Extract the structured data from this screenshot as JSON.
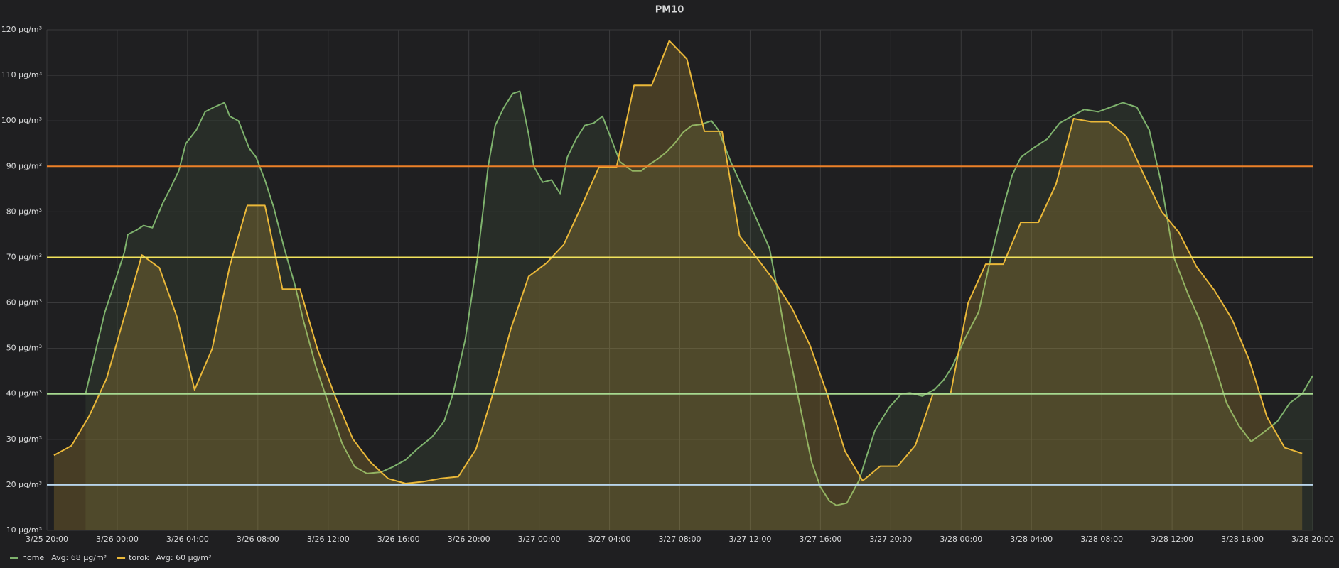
{
  "chart_data": {
    "type": "line",
    "title": "PM10",
    "grid": true,
    "background": "#1f1f21",
    "xlim": [
      0,
      72
    ],
    "ylim": [
      10,
      120
    ],
    "xticks": [
      {
        "value": 0,
        "label": "3/25 20:00"
      },
      {
        "value": 4,
        "label": "3/26 00:00"
      },
      {
        "value": 8,
        "label": "3/26 04:00"
      },
      {
        "value": 12,
        "label": "3/26 08:00"
      },
      {
        "value": 16,
        "label": "3/26 12:00"
      },
      {
        "value": 20,
        "label": "3/26 16:00"
      },
      {
        "value": 24,
        "label": "3/26 20:00"
      },
      {
        "value": 28,
        "label": "3/27 00:00"
      },
      {
        "value": 32,
        "label": "3/27 04:00"
      },
      {
        "value": 36,
        "label": "3/27 08:00"
      },
      {
        "value": 40,
        "label": "3/27 12:00"
      },
      {
        "value": 44,
        "label": "3/27 16:00"
      },
      {
        "value": 48,
        "label": "3/27 20:00"
      },
      {
        "value": 52,
        "label": "3/28 00:00"
      },
      {
        "value": 56,
        "label": "3/28 04:00"
      },
      {
        "value": 60,
        "label": "3/28 08:00"
      },
      {
        "value": 64,
        "label": "3/28 12:00"
      },
      {
        "value": 68,
        "label": "3/28 16:00"
      },
      {
        "value": 72,
        "label": "3/28 20:00"
      }
    ],
    "yticks": [
      {
        "value": 10,
        "label": "10 µg/m³"
      },
      {
        "value": 20,
        "label": "20 µg/m³"
      },
      {
        "value": 30,
        "label": "30 µg/m³"
      },
      {
        "value": 40,
        "label": "40 µg/m³"
      },
      {
        "value": 50,
        "label": "50 µg/m³"
      },
      {
        "value": 60,
        "label": "60 µg/m³"
      },
      {
        "value": 70,
        "label": "70 µg/m³"
      },
      {
        "value": 80,
        "label": "80 µg/m³"
      },
      {
        "value": 90,
        "label": "90 µg/m³"
      },
      {
        "value": 100,
        "label": "100 µg/m³"
      },
      {
        "value": 110,
        "label": "110 µg/m³"
      },
      {
        "value": 120,
        "label": "120 µg/m³"
      }
    ],
    "thresholds": [
      {
        "value": 90,
        "color": "#ed8128"
      },
      {
        "value": 70,
        "color": "#f2e35c"
      },
      {
        "value": 40,
        "color": "#a6d88f"
      },
      {
        "value": 20,
        "color": "#b8d4ea"
      }
    ],
    "series": [
      {
        "name": "home",
        "legend_text": "Avg: 68 µg/m³",
        "color": "#7eb26d",
        "fill_opacity": 0.1,
        "x": [
          2.2,
          2.8,
          3.3,
          3.9,
          4.4,
          4.6,
          5.1,
          5.5,
          6.0,
          6.6,
          7.0,
          7.5,
          7.9,
          8.5,
          9.0,
          9.5,
          10.1,
          10.4,
          10.9,
          11.5,
          11.9,
          12.4,
          12.9,
          13.5,
          14.1,
          14.6,
          15.3,
          16.0,
          16.8,
          17.5,
          18.2,
          19.0,
          19.7,
          20.4,
          21.1,
          21.9,
          22.6,
          23.1,
          23.8,
          24.5,
          25.1,
          25.5,
          26.0,
          26.5,
          26.9,
          27.4,
          27.7,
          28.2,
          28.7,
          29.2,
          29.6,
          30.1,
          30.6,
          31.1,
          31.6,
          32.1,
          32.6,
          33.3,
          33.8,
          34.3,
          34.7,
          35.2,
          35.7,
          36.2,
          36.7,
          37.2,
          37.8,
          38.2,
          38.9,
          39.6,
          40.3,
          41.1,
          41.5,
          42.0,
          42.8,
          43.5,
          44.0,
          44.5,
          44.9,
          45.5,
          46.2,
          46.6,
          47.1,
          47.9,
          48.6,
          49.1,
          49.8,
          50.5,
          51.0,
          51.5,
          52.2,
          53.0,
          53.7,
          54.4,
          54.9,
          55.4,
          56.1,
          56.9,
          57.6,
          58.3,
          59.0,
          59.8,
          60.5,
          61.2,
          62.0,
          62.7,
          63.4,
          64.1,
          64.9,
          65.6,
          66.3,
          67.1,
          67.8,
          68.5,
          69.2,
          70.0,
          70.7,
          71.4,
          72.0
        ],
        "values": [
          40,
          50,
          58,
          65,
          71,
          75,
          76,
          77,
          76.5,
          82,
          85,
          89,
          95,
          98,
          102,
          103,
          104,
          101,
          100,
          94,
          92,
          87,
          81,
          72,
          64,
          56,
          46,
          38,
          29,
          24,
          22.5,
          22.8,
          24,
          25.5,
          28,
          30.5,
          34,
          40,
          52,
          70,
          90,
          99,
          103,
          106,
          106.5,
          97,
          90,
          86.5,
          87,
          84,
          92,
          96,
          99,
          99.5,
          101,
          96,
          91,
          89,
          89,
          90.5,
          91.5,
          93,
          95,
          97.5,
          99,
          99.2,
          100,
          98,
          91,
          85,
          79,
          72,
          64,
          53,
          38,
          25,
          19.5,
          16.5,
          15.5,
          16,
          21,
          26,
          32,
          37,
          40,
          40.2,
          39.5,
          41,
          43,
          46,
          52,
          58,
          70,
          81,
          88,
          92,
          94,
          96,
          99.5,
          101,
          102.5,
          102,
          103,
          104,
          103,
          98,
          86,
          70,
          62,
          56,
          48,
          38,
          33,
          29.5,
          31.5,
          34,
          38,
          40,
          44
        ]
      },
      {
        "name": "torok",
        "legend_text": "Avg: 60 µg/m³",
        "color": "#eab839",
        "fill_opacity": 0.2,
        "x": [
          0.4,
          1.4,
          2.4,
          3.4,
          4.4,
          5.4,
          6.4,
          7.4,
          8.4,
          9.4,
          10.4,
          11.4,
          12.4,
          13.4,
          14.4,
          15.4,
          16.4,
          17.4,
          18.4,
          19.4,
          20.4,
          21.4,
          22.4,
          23.4,
          24.4,
          25.4,
          26.4,
          27.4,
          28.4,
          29.4,
          30.4,
          31.4,
          32.4,
          33.4,
          34.4,
          35.4,
          36.4,
          37.4,
          38.4,
          39.4,
          40.4,
          41.4,
          42.4,
          43.4,
          44.4,
          45.4,
          46.4,
          47.4,
          48.4,
          49.4,
          50.4,
          51.4,
          52.4,
          53.4,
          54.4,
          55.4,
          56.4,
          57.4,
          58.4,
          59.4,
          60.4,
          61.4,
          62.4,
          63.4,
          64.4,
          65.4,
          66.4,
          67.4,
          68.4,
          69.4,
          70.4,
          71.4
        ],
        "values": [
          26.5,
          28.6,
          35.1,
          43.4,
          56.9,
          70.5,
          67.7,
          56.9,
          40.9,
          49.9,
          68.1,
          81.4,
          81.4,
          63.0,
          63.0,
          49.7,
          39.4,
          30.1,
          25.0,
          21.4,
          20.3,
          20.7,
          21.4,
          21.8,
          27.8,
          40.4,
          54.4,
          65.8,
          68.7,
          72.8,
          81.2,
          89.8,
          89.8,
          107.8,
          107.8,
          117.6,
          113.6,
          97.7,
          97.7,
          74.7,
          69.8,
          64.7,
          58.7,
          50.7,
          39.8,
          27.4,
          20.9,
          24.1,
          24.1,
          28.7,
          40.0,
          40.0,
          60.0,
          68.5,
          68.5,
          77.7,
          77.7,
          86.1,
          100.5,
          99.8,
          99.8,
          96.6,
          88.1,
          80.1,
          75.4,
          67.9,
          62.8,
          56.5,
          47.3,
          34.9,
          28.2,
          26.9
        ]
      }
    ]
  }
}
